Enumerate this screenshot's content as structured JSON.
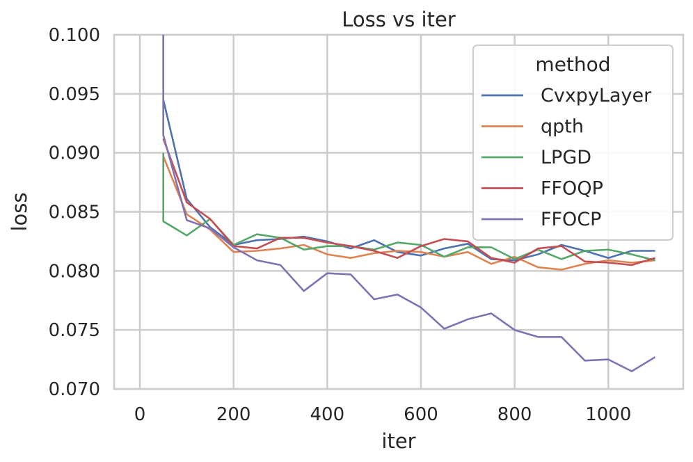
{
  "chart_data": {
    "type": "line",
    "title": "Loss vs iter",
    "xlabel": "iter",
    "ylabel": "loss",
    "xlim": [
      -55,
      1160
    ],
    "ylim": [
      0.07,
      0.1
    ],
    "xticks": [
      0,
      200,
      400,
      600,
      800,
      1000
    ],
    "xtick_labels": [
      "0",
      "200",
      "400",
      "600",
      "800",
      "1000"
    ],
    "yticks": [
      0.07,
      0.075,
      0.08,
      0.085,
      0.09,
      0.095,
      0.1
    ],
    "ytick_labels": [
      "0.070",
      "0.075",
      "0.080",
      "0.085",
      "0.090",
      "0.095",
      "0.100"
    ],
    "grid": true,
    "legend": {
      "title": "method",
      "position": "top-right"
    },
    "series": [
      {
        "name": "CvxpyLayer",
        "color": "#4c72b0",
        "x": [
          50,
          100,
          150,
          200,
          250,
          300,
          350,
          400,
          450,
          500,
          550,
          600,
          650,
          700,
          750,
          800,
          850,
          900,
          950,
          1000,
          1050,
          1100
        ],
        "y": [
          0.0945,
          0.0861,
          0.0837,
          0.0822,
          0.0826,
          0.0827,
          0.0829,
          0.0825,
          0.0819,
          0.0826,
          0.0816,
          0.0813,
          0.0819,
          0.0823,
          0.081,
          0.0809,
          0.0814,
          0.0822,
          0.0817,
          0.0811,
          0.0817,
          0.0817
        ]
      },
      {
        "name": "qpth",
        "color": "#dd8452",
        "x": [
          50,
          100,
          150,
          200,
          250,
          300,
          350,
          400,
          450,
          500,
          550,
          600,
          650,
          700,
          750,
          800,
          850,
          900,
          950,
          1000,
          1050,
          1100
        ],
        "y": [
          0.0897,
          0.0848,
          0.0835,
          0.0816,
          0.0817,
          0.0819,
          0.0822,
          0.0814,
          0.0811,
          0.0815,
          0.0817,
          0.0816,
          0.0812,
          0.0816,
          0.0806,
          0.0812,
          0.0803,
          0.0801,
          0.0806,
          0.0809,
          0.0807,
          0.0809
        ]
      },
      {
        "name": "LPGD",
        "color": "#55a868",
        "x": [
          50,
          50,
          100,
          150,
          200,
          250,
          300,
          350,
          400,
          450,
          500,
          550,
          600,
          650,
          700,
          750,
          800,
          850,
          900,
          950,
          1000,
          1050,
          1100
        ],
        "y": [
          0.09,
          0.0842,
          0.083,
          0.0844,
          0.0822,
          0.0831,
          0.0828,
          0.0818,
          0.0821,
          0.0821,
          0.0818,
          0.0824,
          0.0822,
          0.0812,
          0.082,
          0.082,
          0.081,
          0.0818,
          0.081,
          0.0817,
          0.0818,
          0.0814,
          0.0809
        ]
      },
      {
        "name": "FFOQP",
        "color": "#c44e52",
        "x": [
          50,
          100,
          150,
          200,
          250,
          300,
          350,
          400,
          450,
          500,
          550,
          600,
          650,
          700,
          750,
          800,
          850,
          900,
          950,
          1000,
          1050,
          1100
        ],
        "y": [
          0.0912,
          0.0858,
          0.0844,
          0.0821,
          0.0819,
          0.0828,
          0.0828,
          0.0824,
          0.0821,
          0.0817,
          0.0811,
          0.0821,
          0.0827,
          0.0825,
          0.0811,
          0.0807,
          0.0819,
          0.0821,
          0.0808,
          0.0807,
          0.0805,
          0.0811
        ]
      },
      {
        "name": "FFOCP",
        "color": "#8172b3",
        "x": [
          50,
          50,
          100,
          150,
          200,
          250,
          300,
          350,
          400,
          450,
          500,
          550,
          600,
          650,
          700,
          750,
          800,
          850,
          900,
          950,
          1000,
          1050,
          1100
        ],
        "y": [
          0.1,
          0.0915,
          0.0843,
          0.0836,
          0.082,
          0.0809,
          0.0805,
          0.0783,
          0.0798,
          0.0797,
          0.0776,
          0.078,
          0.0769,
          0.0751,
          0.0759,
          0.0764,
          0.075,
          0.0744,
          0.0744,
          0.0724,
          0.0725,
          0.0715,
          0.0727
        ]
      }
    ]
  }
}
